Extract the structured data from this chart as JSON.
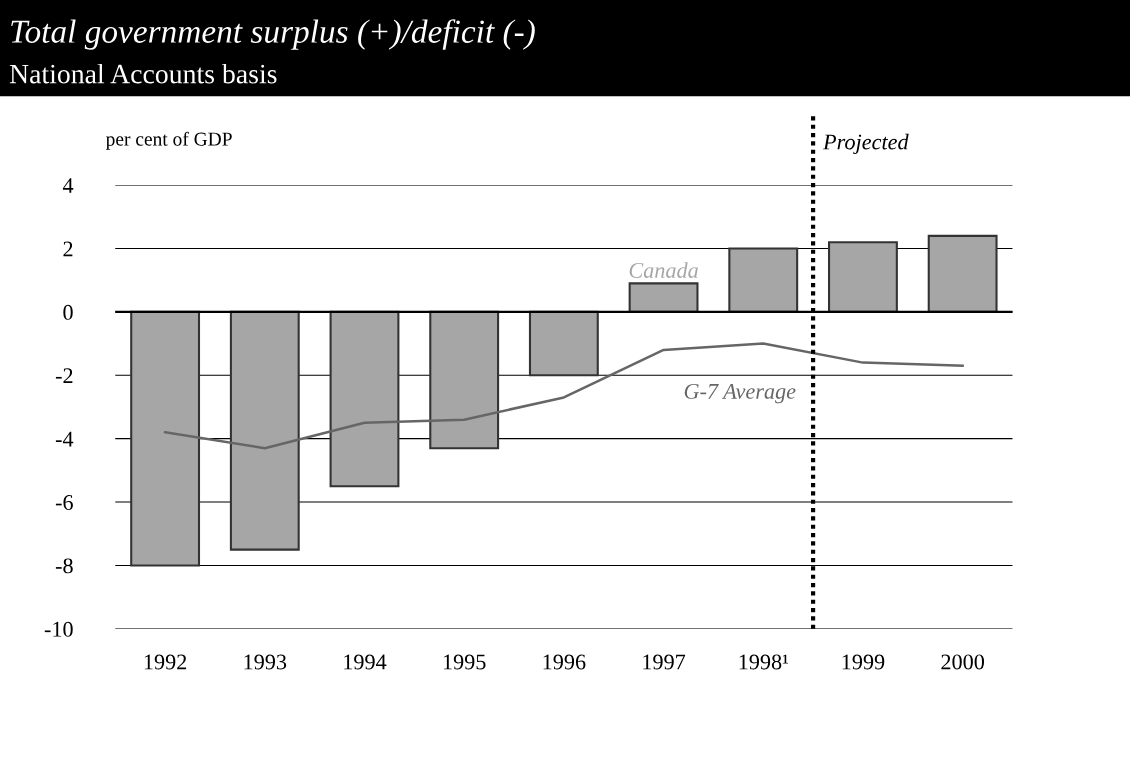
{
  "chart_data": {
    "type": "bar",
    "title": "Total government surplus (+)/deficit (-)",
    "subtitle": "National Accounts basis",
    "ylabel": "per cent of GDP",
    "x": [
      1992,
      1993,
      1994,
      1995,
      1996,
      1997,
      1998,
      1999,
      2000
    ],
    "series": [
      {
        "name": "Canada",
        "color": "#a6a6a6",
        "values": [
          -8.0,
          -7.5,
          -5.5,
          -4.3,
          -2.0,
          0.9,
          2.0,
          2.2,
          2.4
        ]
      },
      {
        "name": "G-7 Average",
        "type": "line",
        "color": "#666666",
        "values": [
          -3.8,
          -4.3,
          -3.5,
          -3.4,
          -2.7,
          -1.2,
          -1.0,
          -1.6,
          -1.7
        ]
      }
    ],
    "xlim": [
      1991.5,
      2000.5
    ],
    "xticks": [
      1992,
      1993,
      1994,
      1995,
      1996,
      1997,
      {
        "value": 1998,
        "label": "1998¹"
      },
      1999,
      2000
    ],
    "ylim": [
      -10,
      4
    ],
    "yticks": [
      -10,
      -8,
      -6,
      -4,
      -2,
      0,
      2,
      4
    ],
    "grid": "y",
    "legend": false,
    "ref_lines": [
      {
        "axis": "x",
        "value": 1998.5,
        "label": "Projected",
        "color": "#000000",
        "line_style": "dotted"
      }
    ]
  }
}
